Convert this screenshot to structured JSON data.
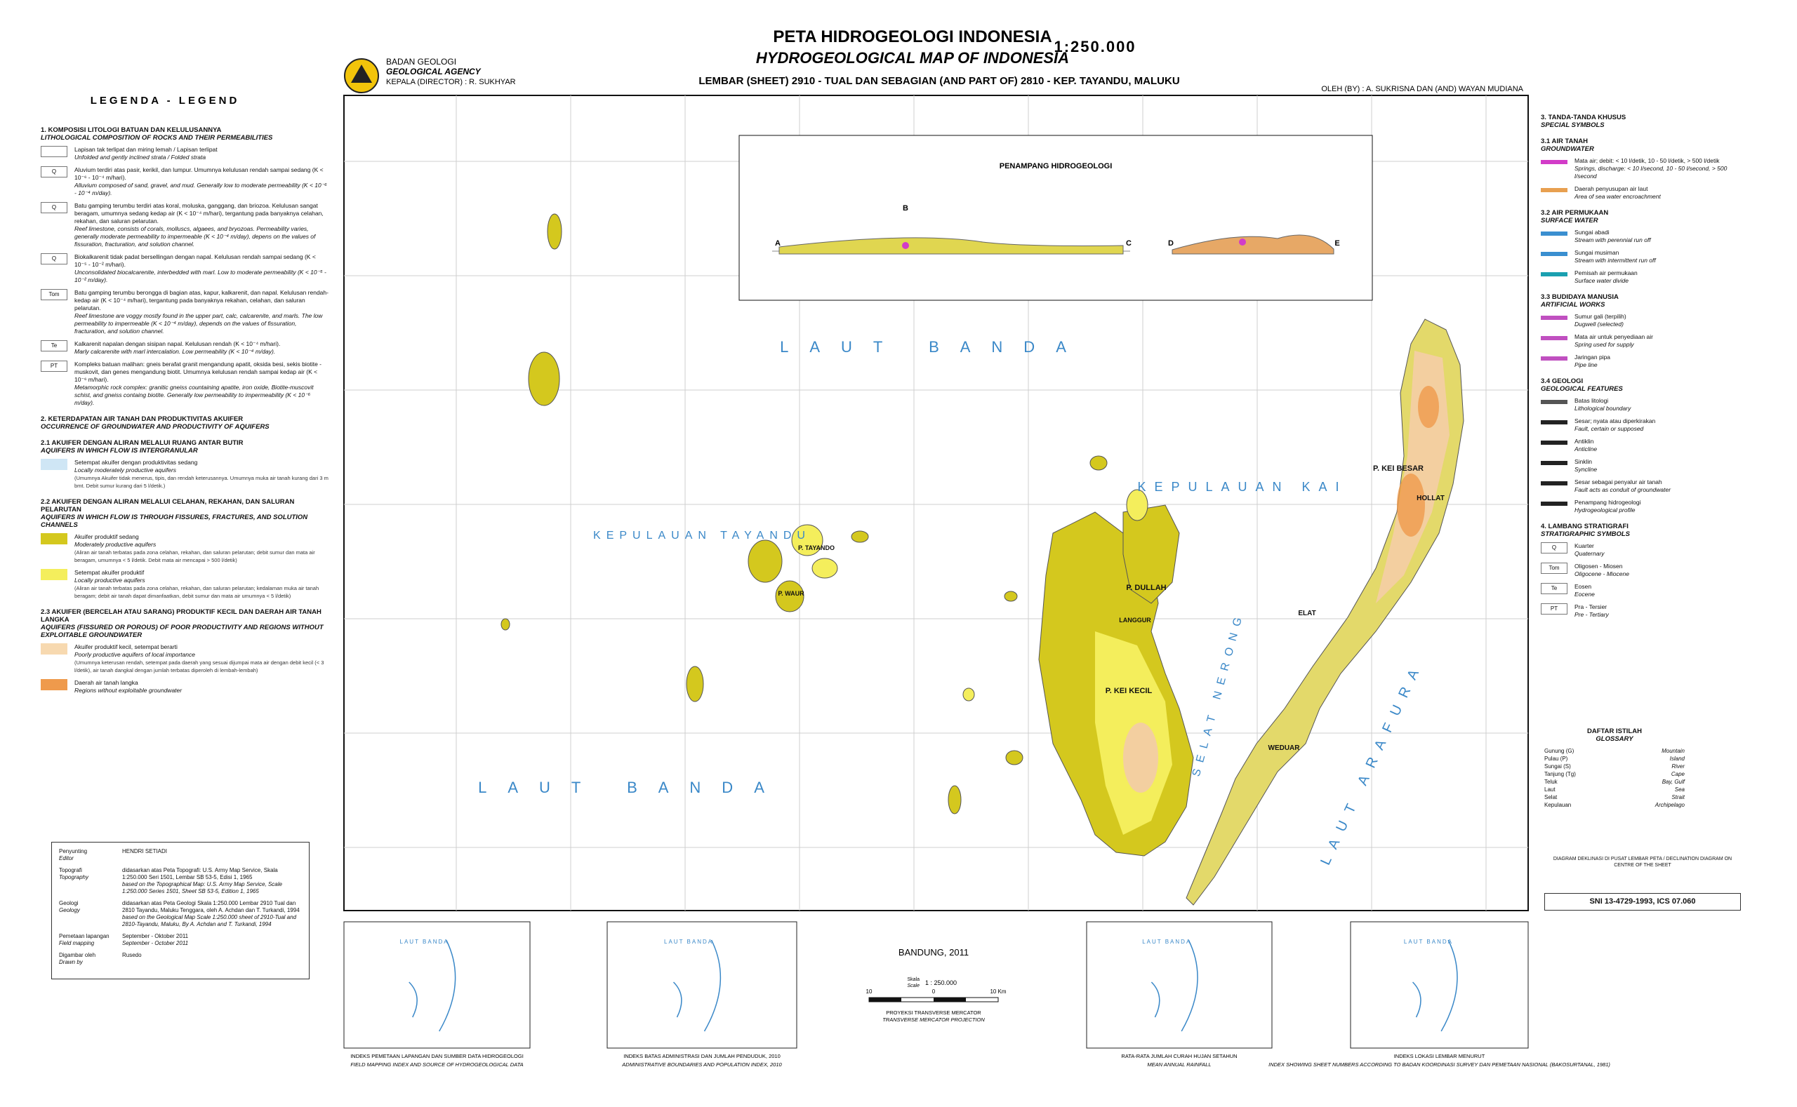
{
  "header": {
    "title": "PETA HIDROGEOLOGI INDONESIA",
    "title_en": "HYDROGEOLOGICAL MAP OF INDONESIA",
    "scale": "1:250.000",
    "sheet": "LEMBAR (SHEET) 2910 - TUAL DAN SEBAGIAN (AND PART OF) 2810 - KEP. TAYANDU, MALUKU",
    "agency": "BADAN GEOLOGI",
    "agency_en": "GEOLOGICAL AGENCY",
    "director": "KEPALA (DIRECTOR) : R. SUKHYAR",
    "authors": "OLEH (BY) : A. SUKRISNA DAN (AND) WAYAN MUDIANA"
  },
  "legend": {
    "heading": "LEGENDA - LEGEND",
    "sections": [
      {
        "title": "1. KOMPOSISI LITOLOGI BATUAN DAN KELULUSANNYA",
        "title_en": "LITHOLOGICAL COMPOSITION OF ROCKS AND THEIR PERMEABILITIES",
        "items": [
          {
            "symbol": "",
            "text": "Lapisan tak terlipat dan miring lemah / Lapisan terlipat",
            "text_en": "Unfolded and gently inclined strata / Folded strata"
          },
          {
            "symbol": "Q",
            "text": "Aluvium terdiri atas pasir, kerikil, dan lumpur. Umumnya kelulusan rendah sampai sedang (K < 10⁻⁶ - 10⁻⁴ m/hari).",
            "text_en": "Alluvium composed of sand, gravel, and mud. Generally low to moderate permeability (K < 10⁻⁶ - 10⁻⁴ m/day)."
          },
          {
            "symbol": "Q",
            "text": "Batu gamping terumbu terdiri atas koral, moluska, ganggang, dan briozoa. Kelulusan sangat beragam, umumnya sedang kedap air (K < 10⁻⁴ m/hari), tergantung pada banyaknya celahan, rekahan, dan saluran pelarutan.",
            "text_en": "Reef limestone, consists of corals, molluscs, algaees, and bryozoas. Permeability varies, generally moderate permeability to impermeable (K < 10⁻⁴ m/day), depens on the values of fissuration, fracturation, and solution channel."
          },
          {
            "symbol": "Q",
            "text": "Biokalkarenit tidak padat bersellingan dengan napal. Kelulusan rendah sampai sedang (K < 10⁻⁵ - 10⁻² m/hari).",
            "text_en": "Unconsolidated biocalcarenite, interbedded with marl. Low to moderate permeability (K < 10⁻⁵ - 10⁻² m/day)."
          },
          {
            "symbol": "Tom",
            "text": "Batu gamping terumbu berongga di bagian atas, kapur, kalkarenit, dan napal. Kelulusan rendah-kedap air (K < 10⁻⁴ m/hari), tergantung pada banyaknya rekahan, celahan, dan saluran pelarutan.",
            "text_en": "Reef limestone are voggy mostly found in the upper part, calc, calcarenite, and marls. The low permeability to impermeable (K < 10⁻⁴ m/day), depends on the values of fissuration, fracturation, and solution channel."
          },
          {
            "symbol": "Te",
            "text": "Kalkarenit napalan dengan sisipan napal. Kelulusan rendah (K < 10⁻⁴ m/hari).",
            "text_en": "Marly calcarenite with marl intercalation. Low permeability (K < 10⁻⁴ m/day)."
          },
          {
            "symbol": "PT",
            "text": "Kompleks batuan malihan: gneis berafat granit mengandung apatit, oksida besi, sekis biotite - muskovit, dan genes mengandung biotit. Umumnya kelulusan rendah sampai kedap air (K < 10⁻⁶ m/hari).",
            "text_en": "Metamorphic rock complex: granitic gneiss countaining apatite, iron oxide, Biotite-muscovit schist, and gneiss containg biotite. Generally low permeability to impermeability (K < 10⁻⁶ m/day)."
          }
        ]
      },
      {
        "title": "2. KETERDAPATAN AIR TANAH DAN PRODUKTIVITAS AKUIFER",
        "title_en": "OCCURRENCE OF GROUNDWATER AND PRODUCTIVITY OF AQUIFERS",
        "items": []
      },
      {
        "title": "2.1 AKUIFER DENGAN ALIRAN MELALUI RUANG ANTAR BUTIR",
        "title_en": "AQUIFERS IN WHICH FLOW IS INTERGRANULAR",
        "items": [
          {
            "color": "#cfe6f5",
            "text": "Setempat akuifer dengan produktivitas sedang",
            "text_en": "Locally moderately productive aquifers",
            "note": "(Umumnya Akuifer tidak menerus, tipis, dan rendah keterusannya. Umumnya muka air tanah kurang dari 3 m bmt. Debit sumur kurang dari 5 l/detik.)"
          }
        ]
      },
      {
        "title": "2.2 AKUIFER DENGAN ALIRAN MELALUI CELAHAN, REKAHAN, DAN SALURAN PELARUTAN",
        "title_en": "AQUIFERS IN WHICH FLOW IS THROUGH FISSURES, FRACTURES, AND SOLUTION CHANNELS",
        "items": [
          {
            "color": "#d4c81e",
            "text": "Akuifer produktif sedang",
            "text_en": "Moderately productive aquifers",
            "note": "(Aliran air tanah terbatas pada zona celahan, rekahan, dan saluran pelarutan; debit sumur dan mata air beragam, umumnya < 5 l/detik. Debit mata air mencapai > 500 l/detik)"
          },
          {
            "color": "#f4ee5c",
            "text": "Setempat akuifer produktif",
            "text_en": "Locally productive aquifers",
            "note": "(Aliran air tanah terbatas pada zona celahan, rekahan, dan saluran pelarutan; kedalaman muka air tanah beragam; debit air tanah dapat dimanfaatkan, debit sumur dan mata air umumnya < 5 l/detik)"
          }
        ]
      },
      {
        "title": "2.3 AKUIFER (BERCELAH ATAU SARANG) PRODUKTIF KECIL DAN DAERAH AIR TANAH LANGKA",
        "title_en": "AQUIFERS (FISSURED OR POROUS) OF POOR PRODUCTIVITY AND REGIONS WITHOUT EXPLOITABLE GROUNDWATER",
        "items": [
          {
            "color": "#f7d9b0",
            "text": "Akuifer produktif kecil, setempat berarti",
            "text_en": "Poorly productive aquifers of local importance",
            "note": "(Umumnya keterusan rendah, setempat pada daerah yang sesuai dijumpai mata air dengan debit kecil (< 3 l/detik), air tanah dangkal dengan jumlah terbatas diperoleh di lembah-lembah)"
          },
          {
            "color": "#ef9a4c",
            "text": "Daerah air tanah langka",
            "text_en": "Regions without exploitable groundwater"
          }
        ]
      }
    ]
  },
  "credits": [
    {
      "label": "Penyunting",
      "label_en": "Editor",
      "text": "HENDRI SETIADI"
    },
    {
      "label": "Topografi",
      "label_en": "Topography",
      "text": "didasarkan atas Peta Topografi: U.S. Army Map Service, Skala 1:250.000 Seri 1501, Lembar SB 53-5, Edisi 1, 1965",
      "text_en": "based on the Topographical Map: U.S. Army Map Service, Scale 1:250.000 Series 1501, Sheet SB 53-5, Edition 1, 1965"
    },
    {
      "label": "Geologi",
      "label_en": "Geology",
      "text": "didasarkan atas Peta Geologi Skala 1:250.000 Lembar 2910 Tual dan 2810 Tayandu, Maluku Tenggara, oleh A. Achdan dan T. Turkandi, 1994",
      "text_en": "based on the Geological Map Scale 1:250.000 sheet of 2910-Tual and 2810-Tayandu, Maluku, By A. Achdan and T. Turkandi, 1994"
    },
    {
      "label": "Pemetaan lapangan",
      "label_en": "Field mapping",
      "text": "September - Oktober 2011",
      "text_en": "September - October 2011"
    },
    {
      "label": "Digambar oleh",
      "label_en": "Drawn by",
      "text": "Rusedo"
    }
  ],
  "map": {
    "labels": [
      "LAUT BANDA",
      "LAUT BANDA",
      "KEPULAUAN KAI",
      "KEPULAUAN TAYANDU",
      "SELAT NERONG",
      "LAUT ARAFURA",
      "P. KEI KECIL",
      "P. KEI BESAR",
      "P. DULLAH",
      "LANGGUR",
      "ELAT",
      "HOLLAT",
      "WEDUAR",
      "P. WAUR",
      "P. TAYANDO"
    ],
    "section_title": "PENAMPANG HIDROGEOLOGI",
    "section_points": [
      "A",
      "B",
      "C",
      "D",
      "E"
    ]
  },
  "symbols": [
    {
      "title": "3. TANDA-TANDA KHUSUS",
      "title_en": "SPECIAL SYMBOLS",
      "items": []
    },
    {
      "title": "3.1 AIR TANAH",
      "title_en": "GROUNDWATER",
      "items": [
        {
          "text": "Mata air; debit: < 10 l/detik, 10 - 50 l/detik, > 500 l/detik",
          "text_en": "Springs, discharge: < 10 l/second, 10 - 50 l/second, > 500 l/second",
          "color": "#d23cc8"
        },
        {
          "text": "Daerah penyusupan air laut",
          "text_en": "Area of sea water encroachment",
          "color": "#e8a050"
        }
      ]
    },
    {
      "title": "3.2 AIR PERMUKAAN",
      "title_en": "SURFACE WATER",
      "items": [
        {
          "text": "Sungai abadi",
          "text_en": "Stream with perennial run off",
          "color": "#3a8fd0"
        },
        {
          "text": "Sungai musiman",
          "text_en": "Stream with intermittent run off",
          "color": "#3a8fd0"
        },
        {
          "text": "Pemisah air permukaan",
          "text_en": "Surface water divide",
          "color": "#1aa0b0"
        }
      ]
    },
    {
      "title": "3.3 BUDIDAYA MANUSIA",
      "title_en": "ARTIFICIAL WORKS",
      "items": [
        {
          "text": "Sumur gali (terpilih)",
          "text_en": "Dugwell (selected)",
          "color": "#c050c0"
        },
        {
          "text": "Mata air untuk penyediaan air",
          "text_en": "Spring used for supply",
          "color": "#c050c0"
        },
        {
          "text": "Jaringan pipa",
          "text_en": "Pipe line",
          "color": "#c050c0"
        }
      ]
    },
    {
      "title": "3.4 GEOLOGI",
      "title_en": "GEOLOGICAL FEATURES",
      "items": [
        {
          "text": "Batas litologi",
          "text_en": "Lithological boundary",
          "color": "#555555"
        },
        {
          "text": "Sesar; nyata atau diperkirakan",
          "text_en": "Fault, certain or supposed",
          "color": "#222222"
        },
        {
          "text": "Antiklin",
          "text_en": "Anticline",
          "color": "#222222"
        },
        {
          "text": "Sinklin",
          "text_en": "Syncline",
          "color": "#222222"
        },
        {
          "text": "Sesar sebagai penyalur air tanah",
          "text_en": "Fault acts as conduit of groundwater",
          "color": "#222222"
        },
        {
          "text": "Penampang hidrogeologi",
          "text_en": "Hydrogeological profile",
          "color": "#222222"
        }
      ]
    },
    {
      "title": "4. LAMBANG STRATIGRAFI",
      "title_en": "STRATIGRAPHIC SYMBOLS",
      "items": [
        {
          "symbol": "Q",
          "text": "Kuarter",
          "text_en": "Quaternary"
        },
        {
          "symbol": "Tom",
          "text": "Oligosen - Miosen",
          "text_en": "Oligocene - Miocene"
        },
        {
          "symbol": "Te",
          "text": "Eosen",
          "text_en": "Eocene"
        },
        {
          "symbol": "PT",
          "text": "Pra - Tersier",
          "text_en": "Pre - Tertiary"
        }
      ]
    }
  ],
  "glossary": {
    "title": "DAFTAR ISTILAH",
    "title_en": "GLOSSARY",
    "rows": [
      [
        "Gunung (G)",
        "Mountain"
      ],
      [
        "Pulau (P)",
        "Island"
      ],
      [
        "Sungai (S)",
        "River"
      ],
      [
        "Tanjung (Tg)",
        "Cape"
      ],
      [
        "Teluk",
        "Bay, Gulf"
      ],
      [
        "Laut",
        "Sea"
      ],
      [
        "Selat",
        "Strait"
      ],
      [
        "Kepulauan",
        "Archipelago"
      ]
    ]
  },
  "declination": "DIAGRAM DEKLINASI DI PUSAT LEMBAR PETA / DECLINATION DIAGRAM ON CENTRE OF THE SHEET",
  "standard": "SNI 13-4729-1993, ICS 07.060",
  "footer": {
    "place_date": "BANDUNG, 2011",
    "scale_word": "Skala",
    "scale_word_en": "Scale",
    "scale": "1 : 250.000",
    "scale_labels": [
      "10",
      "0",
      "10 Km"
    ],
    "projection": "PROYEKSI TRANSVERSE MERCATOR",
    "projection_en": "TRANSVERSE MERCATOR PROJECTION",
    "index_maps": [
      {
        "label": "LAUT BANDA",
        "caption": "INDEKS PEMETAAN LAPANGAN DAN SUMBER DATA HIDROGEOLOGI",
        "caption_en": "FIELD MAPPING INDEX AND SOURCE OF HYDROGEOLOGICAL DATA"
      },
      {
        "label": "LAUT BANDA",
        "caption": "INDEKS BATAS ADMINISTRASI DAN JUMLAH PENDUDUK, 2010",
        "caption_en": "ADMINISTRATIVE BOUNDARIES AND POPULATION INDEX, 2010"
      },
      {
        "label": "LAUT BANDA",
        "caption": "RATA-RATA JUMLAH CURAH HUJAN SETAHUN",
        "caption_en": "MEAN ANNUAL RAINFALL"
      },
      {
        "label": "LAUT BANDA",
        "caption": "INDEKS LOKASI LEMBAR MENURUT",
        "caption_en": "INDEX SHOWING SHEET NUMBERS ACCORDING TO BADAN KOORDINASI SURVEY DAN PEMETAAN NASIONAL (BAKOSURTANAL, 1981)"
      }
    ]
  }
}
